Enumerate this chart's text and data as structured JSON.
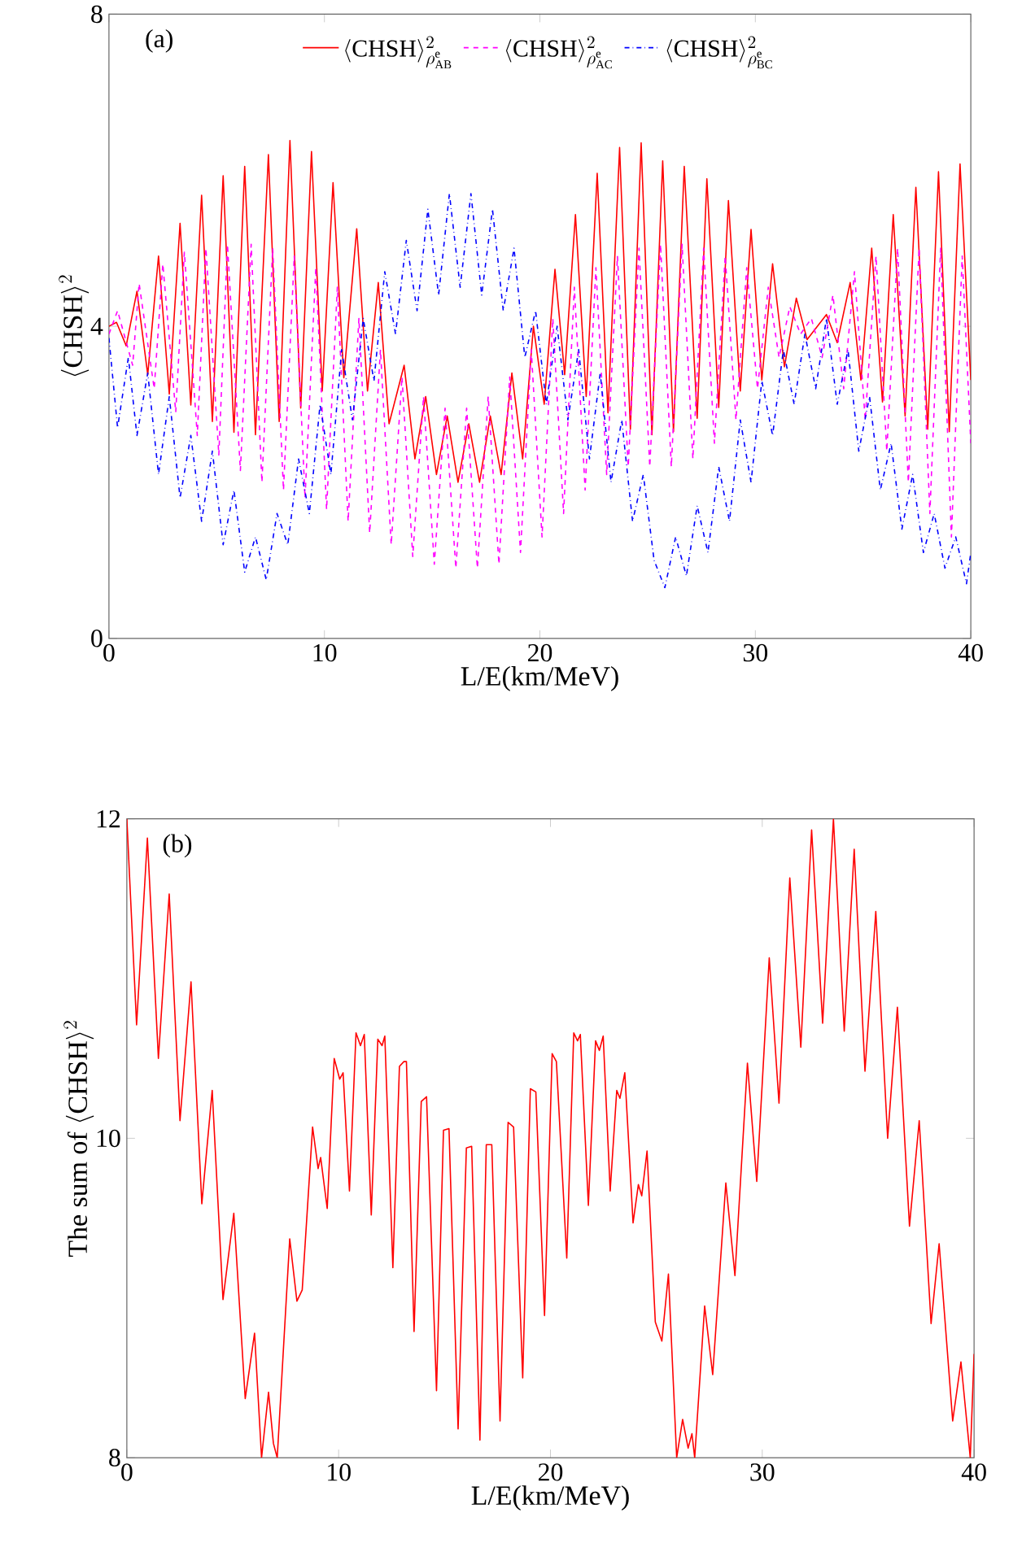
{
  "chart_data": [
    {
      "type": "line",
      "xlabel": "L/E(km/MeV)",
      "ylabel": "\\langle\\mathrm{CHSH}\\rangle^{2}",
      "annotations": [
        "(a)"
      ],
      "xlim": [
        0,
        40
      ],
      "ylim": [
        0,
        8
      ],
      "xticks": [
        0,
        10,
        20,
        30,
        40
      ],
      "yticks": [
        0,
        4,
        8
      ],
      "legend": "top",
      "marker": "none",
      "series": [
        {
          "name": "\\langle\\mathrm{CHSH}\\rangle^{2}_{\\rho^{\\mathrm{e}}_{\\mathrm{AB}}}",
          "color": "#ff0000",
          "line_style": "solid",
          "x": [
            0,
            0.35,
            0.8,
            1.3,
            1.8,
            2.3,
            2.8,
            3.3,
            3.8,
            4.3,
            4.8,
            5.3,
            5.8,
            6.3,
            6.8,
            7.4,
            7.9,
            8.4,
            8.9,
            9.4,
            9.9,
            10.4,
            10.9,
            11.5,
            12.0,
            12.5,
            13.0,
            13.7,
            14.2,
            14.7,
            15.2,
            15.7,
            16.2,
            16.7,
            17.2,
            17.7,
            18.2,
            18.7,
            19.2,
            19.7,
            20.2,
            20.7,
            21.15,
            21.65,
            22.15,
            22.66,
            23.16,
            23.7,
            24.2,
            24.7,
            25.2,
            25.7,
            26.2,
            26.7,
            27.3,
            27.75,
            28.3,
            28.75,
            29.3,
            29.8,
            30.3,
            30.8,
            31.35,
            31.9,
            32.4,
            33.3,
            33.8,
            34.4,
            34.9,
            35.4,
            35.9,
            36.4,
            36.95,
            37.45,
            38.0,
            38.5,
            39.0,
            39.5,
            40
          ],
          "values": [
            4.0,
            4.05,
            3.75,
            4.45,
            3.38,
            4.9,
            3.13,
            5.32,
            2.99,
            5.68,
            2.78,
            5.93,
            2.64,
            6.05,
            2.61,
            6.2,
            2.78,
            6.38,
            2.95,
            6.24,
            3.17,
            5.84,
            3.34,
            5.25,
            3.17,
            4.56,
            2.75,
            3.5,
            2.3,
            3.1,
            2.1,
            2.85,
            2.0,
            2.75,
            2.0,
            2.85,
            2.1,
            3.4,
            2.3,
            4.0,
            3.0,
            4.73,
            3.38,
            5.43,
            3.1,
            5.96,
            2.89,
            6.29,
            2.68,
            6.35,
            2.61,
            6.12,
            2.65,
            6.05,
            2.82,
            5.89,
            2.96,
            5.61,
            3.17,
            5.24,
            3.31,
            4.8,
            3.48,
            4.36,
            3.83,
            4.15,
            3.79,
            4.56,
            3.31,
            5.0,
            3.03,
            5.43,
            2.85,
            5.78,
            2.68,
            5.98,
            2.65,
            6.08,
            3.31
          ]
        },
        {
          "name": "\\langle\\mathrm{CHSH}\\rangle^{2}_{\\rho^{\\mathrm{e}}_{\\mathrm{AC}}}",
          "color": "#ff00ff",
          "line_style": "dashed",
          "x": [
            0,
            0.4,
            1.1,
            1.4,
            2.1,
            2.5,
            3.1,
            3.5,
            4.1,
            4.5,
            5.1,
            5.5,
            6.1,
            6.6,
            7.1,
            7.6,
            8.1,
            8.6,
            9.1,
            9.6,
            10.1,
            10.6,
            11.1,
            11.6,
            12.1,
            12.6,
            13.1,
            13.6,
            14.1,
            14.6,
            15.1,
            15.6,
            16.1,
            16.6,
            17.1,
            17.6,
            18.1,
            18.6,
            19.1,
            19.6,
            20.1,
            20.6,
            21.1,
            21.6,
            22.1,
            22.6,
            23.1,
            23.6,
            24.1,
            24.6,
            25.1,
            25.6,
            26.1,
            26.6,
            27.1,
            27.6,
            28.1,
            28.6,
            29.1,
            29.6,
            30.1,
            30.6,
            31.1,
            31.6,
            32.1,
            32.6,
            33.1,
            33.6,
            34.1,
            34.6,
            35.1,
            35.6,
            36.1,
            36.6,
            37.1,
            37.6,
            38.1,
            38.6,
            39.1,
            39.6,
            40
          ],
          "values": [
            3.9,
            4.2,
            3.5,
            4.55,
            3.2,
            4.8,
            2.9,
            4.95,
            2.6,
            5.0,
            2.35,
            5.05,
            2.15,
            5.05,
            2.0,
            5.0,
            1.9,
            4.9,
            1.8,
            4.75,
            1.65,
            4.5,
            1.5,
            4.1,
            1.35,
            3.7,
            1.2,
            3.35,
            1.05,
            3.1,
            0.95,
            2.95,
            0.9,
            2.95,
            0.9,
            3.1,
            0.95,
            3.35,
            1.1,
            3.7,
            1.3,
            4.1,
            1.6,
            4.5,
            1.9,
            4.75,
            2.1,
            4.9,
            2.2,
            5.0,
            2.2,
            5.05,
            2.2,
            5.05,
            2.3,
            5.0,
            2.5,
            4.9,
            2.8,
            4.75,
            3.2,
            4.5,
            3.6,
            4.25,
            3.9,
            4.1,
            3.6,
            4.4,
            3.2,
            4.7,
            2.8,
            4.9,
            2.4,
            5.0,
            2.0,
            5.0,
            1.6,
            5.0,
            1.3,
            4.9,
            2.5
          ]
        },
        {
          "name": "\\langle\\mathrm{CHSH}\\rangle^{2}_{\\rho^{\\mathrm{e}}_{\\mathrm{BC}}}",
          "color": "#0000ff",
          "line_style": "dashdot",
          "x": [
            0,
            0.4,
            0.9,
            1.3,
            1.8,
            2.3,
            2.8,
            3.3,
            3.8,
            4.3,
            4.8,
            5.3,
            5.8,
            6.3,
            6.8,
            7.3,
            7.8,
            8.3,
            8.8,
            9.3,
            9.8,
            10.3,
            10.8,
            11.3,
            11.8,
            12.3,
            12.8,
            13.3,
            13.8,
            14.3,
            14.8,
            15.3,
            15.8,
            16.3,
            16.8,
            17.3,
            17.8,
            18.3,
            18.8,
            19.3,
            19.8,
            20.3,
            20.8,
            21.3,
            21.8,
            22.3,
            22.8,
            23.3,
            23.8,
            24.3,
            24.8,
            25.3,
            25.8,
            26.3,
            26.8,
            27.3,
            27.8,
            28.3,
            28.8,
            29.3,
            29.8,
            30.3,
            30.8,
            31.3,
            31.8,
            32.3,
            32.8,
            33.3,
            33.8,
            34.3,
            34.8,
            35.3,
            35.8,
            36.3,
            36.8,
            37.3,
            37.8,
            38.3,
            38.8,
            39.3,
            39.8,
            40
          ],
          "values": [
            3.85,
            2.7,
            3.6,
            2.6,
            3.4,
            2.1,
            3.1,
            1.8,
            2.6,
            1.5,
            2.4,
            1.2,
            1.9,
            0.85,
            1.3,
            0.75,
            1.6,
            1.2,
            2.3,
            1.6,
            3.0,
            2.1,
            3.7,
            2.8,
            4.1,
            3.3,
            4.7,
            3.9,
            5.1,
            4.2,
            5.5,
            4.4,
            5.7,
            4.5,
            5.7,
            4.4,
            5.5,
            4.2,
            5.0,
            3.6,
            4.2,
            3.0,
            4.0,
            2.8,
            3.7,
            2.3,
            3.4,
            2.0,
            2.8,
            1.5,
            2.1,
            1.0,
            0.65,
            1.3,
            0.8,
            1.7,
            1.1,
            2.2,
            1.5,
            2.8,
            2.0,
            3.3,
            2.6,
            3.7,
            3.0,
            3.9,
            3.2,
            4.1,
            3.0,
            3.7,
            2.4,
            3.1,
            1.9,
            2.5,
            1.4,
            2.1,
            1.1,
            1.6,
            0.9,
            1.3,
            0.7,
            1.1
          ]
        }
      ]
    },
    {
      "type": "line",
      "xlabel": "L/E(km/MeV)",
      "ylabel": "\\mbox{The sum of }\\langle\\mathrm{CHSH}\\rangle^{2}",
      "annotations": [
        "(b)"
      ],
      "xlim": [
        0,
        40
      ],
      "ylim": [
        8,
        12
      ],
      "xticks": [
        0,
        10,
        20,
        30,
        40
      ],
      "yticks": [
        8,
        10,
        12
      ],
      "marker": "none",
      "series": [
        {
          "color": "#ff0000",
          "line_style": "solid",
          "x": [
            0,
            0.46,
            0.97,
            1.49,
            2.0,
            2.51,
            3.03,
            3.54,
            4.03,
            4.54,
            5.05,
            5.59,
            6.03,
            6.36,
            6.69,
            6.92,
            7.1,
            7.69,
            8.03,
            8.28,
            8.77,
            9.03,
            9.15,
            9.46,
            9.79,
            10.05,
            10.21,
            10.51,
            10.82,
            11.03,
            11.21,
            11.54,
            11.85,
            12.05,
            12.18,
            12.56,
            12.87,
            13.08,
            13.2,
            13.56,
            13.9,
            14.15,
            14.62,
            14.95,
            15.21,
            15.64,
            16.03,
            16.28,
            16.67,
            16.97,
            17.23,
            17.62,
            18.0,
            18.26,
            18.69,
            19.05,
            19.31,
            19.72,
            20.08,
            20.28,
            20.77,
            21.1,
            21.28,
            21.41,
            21.79,
            22.13,
            22.31,
            22.49,
            22.82,
            23.13,
            23.28,
            23.51,
            23.9,
            24.15,
            24.31,
            24.56,
            24.95,
            25.26,
            25.57,
            25.96,
            26.24,
            26.5,
            26.68,
            26.81,
            27.28,
            27.66,
            28.28,
            28.71,
            29.3,
            29.74,
            30.33,
            30.79,
            31.3,
            31.82,
            32.33,
            32.85,
            33.36,
            33.87,
            34.34,
            34.85,
            35.36,
            35.92,
            36.38,
            36.95,
            37.41,
            37.97,
            38.35,
            38.99,
            39.38,
            39.82,
            40.0
          ],
          "values": [
            12.0,
            10.71,
            11.88,
            10.5,
            11.53,
            10.11,
            10.98,
            9.59,
            10.3,
            8.99,
            9.53,
            8.37,
            8.78,
            8.0,
            8.41,
            8.09,
            8.0,
            9.37,
            8.98,
            9.05,
            10.07,
            9.81,
            9.88,
            9.56,
            10.5,
            10.37,
            10.41,
            9.67,
            10.66,
            10.58,
            10.65,
            9.52,
            10.62,
            10.58,
            10.64,
            9.19,
            10.45,
            10.48,
            10.48,
            8.79,
            10.23,
            10.26,
            8.42,
            10.05,
            10.06,
            8.18,
            9.94,
            9.95,
            8.11,
            9.96,
            9.96,
            8.23,
            10.1,
            10.07,
            8.5,
            10.31,
            10.29,
            8.89,
            10.53,
            10.48,
            9.25,
            10.66,
            10.61,
            10.65,
            9.58,
            10.61,
            10.55,
            10.64,
            9.67,
            10.3,
            10.25,
            10.41,
            9.47,
            9.71,
            9.64,
            9.92,
            8.85,
            8.73,
            9.15,
            8.0,
            8.24,
            8.06,
            8.15,
            8.0,
            8.95,
            8.52,
            9.72,
            9.14,
            10.47,
            9.73,
            11.13,
            10.22,
            11.63,
            10.57,
            11.93,
            10.72,
            12.0,
            10.67,
            11.81,
            10.42,
            11.42,
            10.0,
            10.82,
            9.45,
            10.11,
            8.84,
            9.34,
            8.23,
            8.6,
            8.0,
            8.65
          ]
        }
      ]
    }
  ]
}
